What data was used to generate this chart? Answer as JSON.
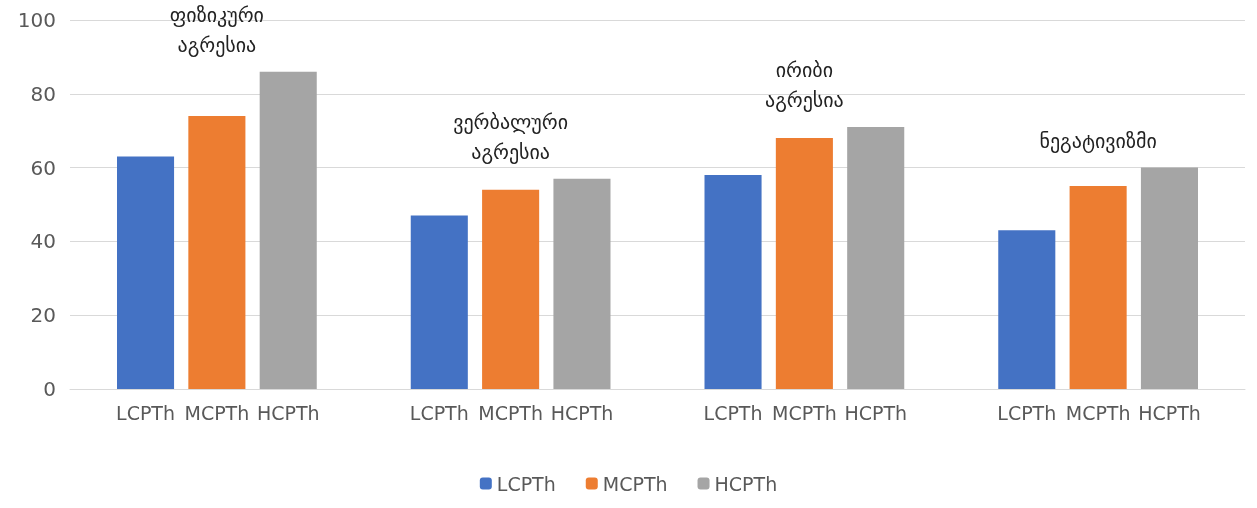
{
  "chart_data": {
    "type": "bar",
    "categories": [
      "ფიზიკური აგრესია",
      "ვერბალური აგრესია",
      "ირიბი აგრესია",
      "ნეგატივიზმი"
    ],
    "series": [
      {
        "name": "LCPTh",
        "color": "#4472c4",
        "values": [
          63,
          47,
          58,
          43
        ]
      },
      {
        "name": "MCPTh",
        "color": "#ed7d31",
        "values": [
          74,
          54,
          68,
          55
        ]
      },
      {
        "name": "HCPTh",
        "color": "#a5a5a5",
        "values": [
          86,
          57,
          71,
          60
        ]
      }
    ],
    "ylim": [
      0,
      100
    ],
    "yticks": [
      0,
      20,
      40,
      60,
      80,
      100
    ],
    "grid": "y",
    "legend": "bottom"
  }
}
